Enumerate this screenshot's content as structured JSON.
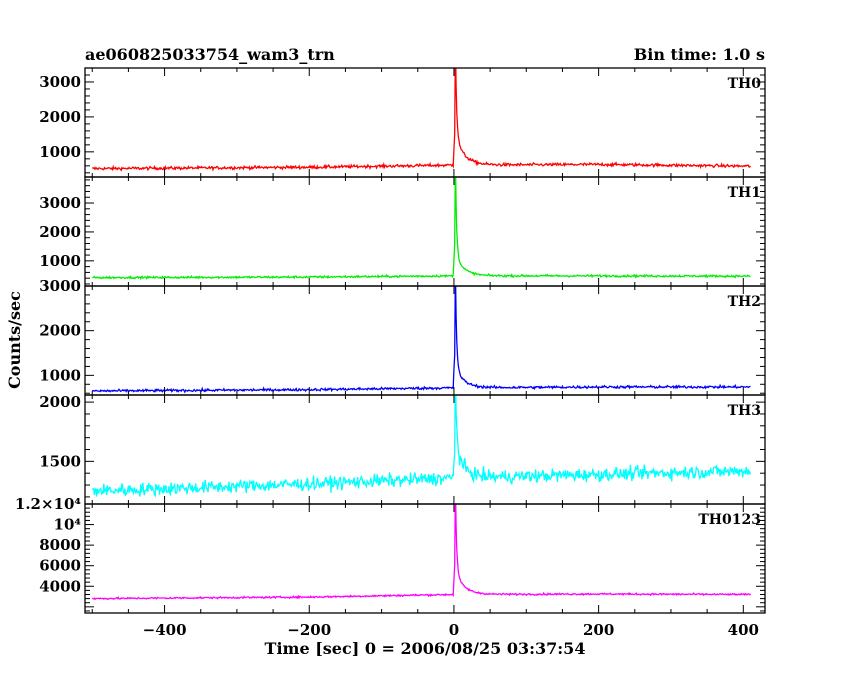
{
  "chart_data": {
    "type": "line",
    "title": "ae060825033754_wam3_trn",
    "bin_time_label": "Bin time: 1.0 s",
    "xlabel": "Time [sec] 0 = 2006/08/25 03:37:54",
    "ylabel": "Counts/sec",
    "xlim": [
      -510,
      430
    ],
    "x_ticks": [
      -400,
      -200,
      0,
      200,
      400
    ],
    "x_tick_labels": [
      "−400",
      "−200",
      "0",
      "200",
      "400"
    ],
    "time_range": [
      -500,
      410
    ],
    "panels": [
      {
        "name": "TH0",
        "color": "#ff0000",
        "ylim": [
          280,
          3400
        ],
        "y_ticks": [
          1000,
          2000,
          3000
        ],
        "y_tick_labels": [
          "1000",
          "2000",
          "3000"
        ],
        "baseline_points": [
          [
            -500,
            520
          ],
          [
            -200,
            560
          ],
          [
            0,
            620
          ],
          [
            200,
            640
          ],
          [
            410,
            590
          ]
        ],
        "noise": 30,
        "peak_time": 2,
        "peak_value": 3400,
        "decay_tail": 850
      },
      {
        "name": "TH1",
        "color": "#00ee00",
        "ylim": [
          130,
          3900
        ],
        "y_ticks": [
          1000,
          2000,
          3000
        ],
        "y_tick_labels": [
          "1000",
          "2000",
          "3000"
        ],
        "baseline_points": [
          [
            -500,
            420
          ],
          [
            -200,
            440
          ],
          [
            0,
            480
          ],
          [
            200,
            480
          ],
          [
            410,
            470
          ]
        ],
        "noise": 25,
        "peak_time": 2,
        "peak_value": 3850,
        "decay_tail": 700
      },
      {
        "name": "TH2",
        "color": "#0000ff",
        "ylim": [
          560,
          3000
        ],
        "y_ticks": [
          1000,
          2000,
          3000
        ],
        "y_tick_labels": [
          "1000",
          "2000",
          "3000"
        ],
        "baseline_points": [
          [
            -500,
            650
          ],
          [
            -200,
            680
          ],
          [
            0,
            720
          ],
          [
            200,
            740
          ],
          [
            410,
            740
          ]
        ],
        "noise": 20,
        "peak_time": 2,
        "peak_value": 2950,
        "decay_tail": 450
      },
      {
        "name": "TH3",
        "color": "#00ffff",
        "ylim": [
          1140,
          2060
        ],
        "y_ticks": [
          1500,
          2000
        ],
        "y_tick_labels": [
          "1500",
          "2000"
        ],
        "baseline_points": [
          [
            -500,
            1250
          ],
          [
            -200,
            1310
          ],
          [
            0,
            1360
          ],
          [
            200,
            1390
          ],
          [
            410,
            1420
          ]
        ],
        "noise": 40,
        "peak_time": 2,
        "peak_value": 2050,
        "decay_tail": 250
      },
      {
        "name": "TH0123",
        "color": "#ff00ff",
        "ylim": [
          1400,
          12000
        ],
        "y_ticks": [
          4000,
          6000,
          8000,
          10000
        ],
        "y_tick_labels": [
          "4000",
          "6000",
          "8000",
          "10⁴"
        ],
        "y_top_label": "1.2×10⁴",
        "baseline_points": [
          [
            -500,
            2800
          ],
          [
            -200,
            2950
          ],
          [
            0,
            3200
          ],
          [
            200,
            3250
          ],
          [
            410,
            3200
          ]
        ],
        "noise": 60,
        "peak_time": 2,
        "peak_value": 11800,
        "decay_tail": 2200
      }
    ]
  }
}
